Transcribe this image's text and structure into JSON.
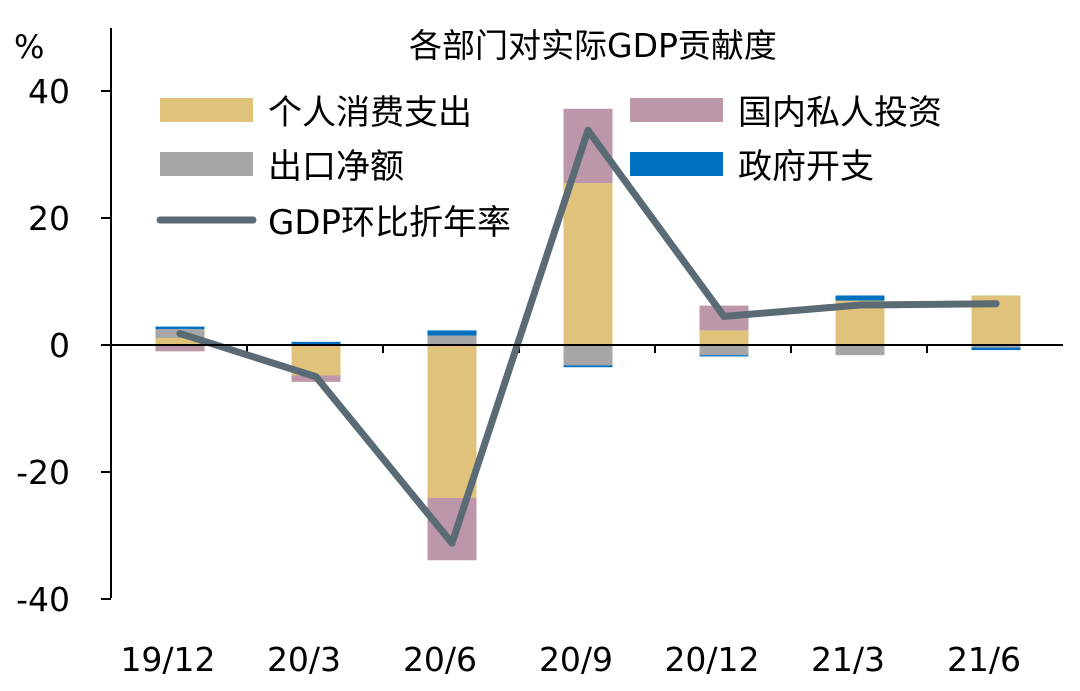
{
  "chart_data": {
    "type": "bar",
    "stacked": true,
    "title": "各部门对实际GDP贡献度",
    "ylabel": "%",
    "ylim": [
      -40,
      50
    ],
    "yticks": [
      40,
      20,
      0,
      -20,
      -40
    ],
    "ytick_labels": [
      "40",
      "20",
      "0",
      "-20",
      "-40"
    ],
    "categories": [
      "19/12",
      "20/3",
      "20/6",
      "20/9",
      "20/12",
      "21/3",
      "21/6"
    ],
    "grid": false,
    "legend_position": "top",
    "series": [
      {
        "name": "个人消费支出",
        "type": "bar",
        "color": "#E0C27A",
        "values": [
          1.1,
          -4.8,
          -24.1,
          25.5,
          2.3,
          7.0,
          7.8
        ]
      },
      {
        "name": "国内私人投资",
        "type": "bar",
        "color": "#BC96A9",
        "values": [
          -1.0,
          -1.0,
          -9.8,
          11.7,
          3.9,
          0.0,
          0.0
        ]
      },
      {
        "name": "出口净额",
        "type": "bar",
        "color": "#A6A6A6",
        "values": [
          1.4,
          0.1,
          1.5,
          -3.2,
          -1.6,
          -1.6,
          -0.4
        ]
      },
      {
        "name": "政府开支",
        "type": "bar",
        "color": "#0070C0",
        "values": [
          0.4,
          0.4,
          0.8,
          -0.3,
          -0.2,
          0.8,
          -0.4
        ]
      },
      {
        "name": "GDP环比折年率",
        "type": "line",
        "color": "#5A6B76",
        "values": [
          1.8,
          -5.0,
          -31.2,
          33.8,
          4.5,
          6.3,
          6.5
        ]
      }
    ]
  }
}
